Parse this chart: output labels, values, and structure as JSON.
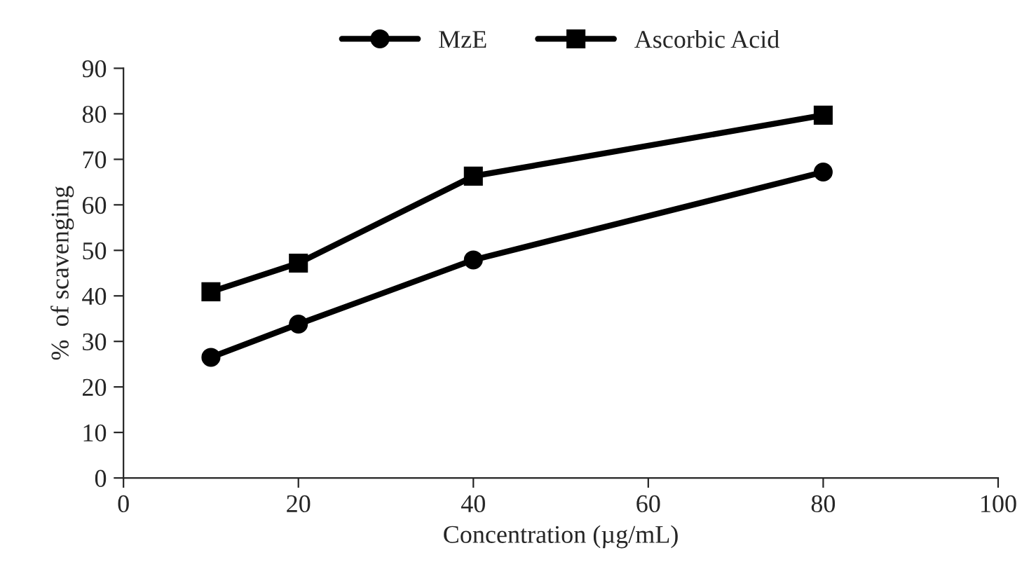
{
  "chart_data": {
    "type": "line",
    "xlabel": "Concentration (µg/mL)",
    "ylabel": "%  of scavenging",
    "x": [
      10,
      20,
      40,
      80
    ],
    "series": [
      {
        "name": "MzE",
        "color": "#000000",
        "marker": "circle",
        "values": [
          26.5,
          33.8,
          47.9,
          67.2
        ]
      },
      {
        "name": "Ascorbic Acid",
        "color": "#000000",
        "marker": "square",
        "values": [
          40.9,
          47.2,
          66.3,
          79.7
        ]
      }
    ],
    "xlim": [
      0,
      100
    ],
    "xticks": [
      0,
      20,
      40,
      60,
      80,
      100
    ],
    "ylim": [
      0,
      90
    ],
    "yticks": [
      0,
      10,
      20,
      30,
      40,
      50,
      60,
      70,
      80,
      90
    ],
    "grid": false,
    "legend": "top",
    "line_style": "solid"
  }
}
